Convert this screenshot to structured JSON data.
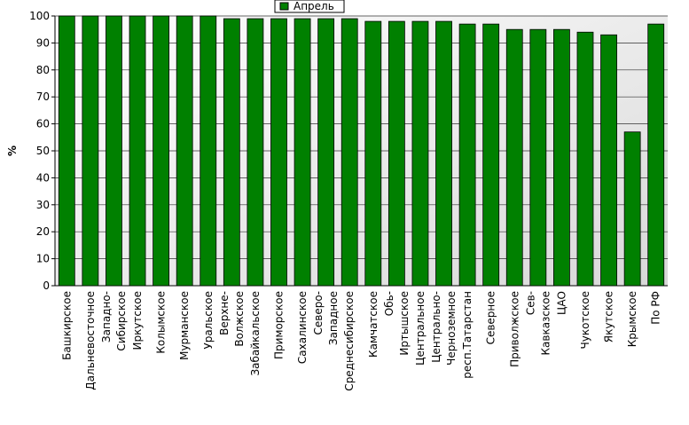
{
  "chart_data": {
    "type": "bar",
    "y_label": "%",
    "legend": "Апрель",
    "legend_position": "top",
    "categories": [
      "Башкирское",
      "Дальневосточное",
      "Западно-\nСибирское",
      "Иркутское",
      "Колымское",
      "Мурманское",
      "Уральское",
      "Верхне-\nВолжское",
      "Забайкальское",
      "Приморское",
      "Сахалинское",
      "Северо-\nЗападное",
      "Среднесибирское",
      "Камчатское",
      "Обь-\nИртышское",
      "Центральное",
      "Центрально-\nЧерноземное",
      "респ.Татарстан",
      "Северное",
      "Приволжское",
      "Сев-\nКавказское",
      "ЦАО",
      "Чукотское",
      "Якутское",
      "Крымское",
      "По РФ"
    ],
    "values": [
      100,
      100,
      100,
      100,
      100,
      100,
      100,
      99,
      99,
      99,
      99,
      99,
      99,
      98,
      98,
      98,
      98,
      97,
      97,
      95,
      95,
      95,
      94,
      93,
      57,
      97
    ],
    "color": "#008000",
    "ylim": [
      0,
      100
    ],
    "yticks": [
      0,
      10,
      20,
      30,
      40,
      50,
      60,
      70,
      80,
      90,
      100
    ],
    "grid": true
  }
}
